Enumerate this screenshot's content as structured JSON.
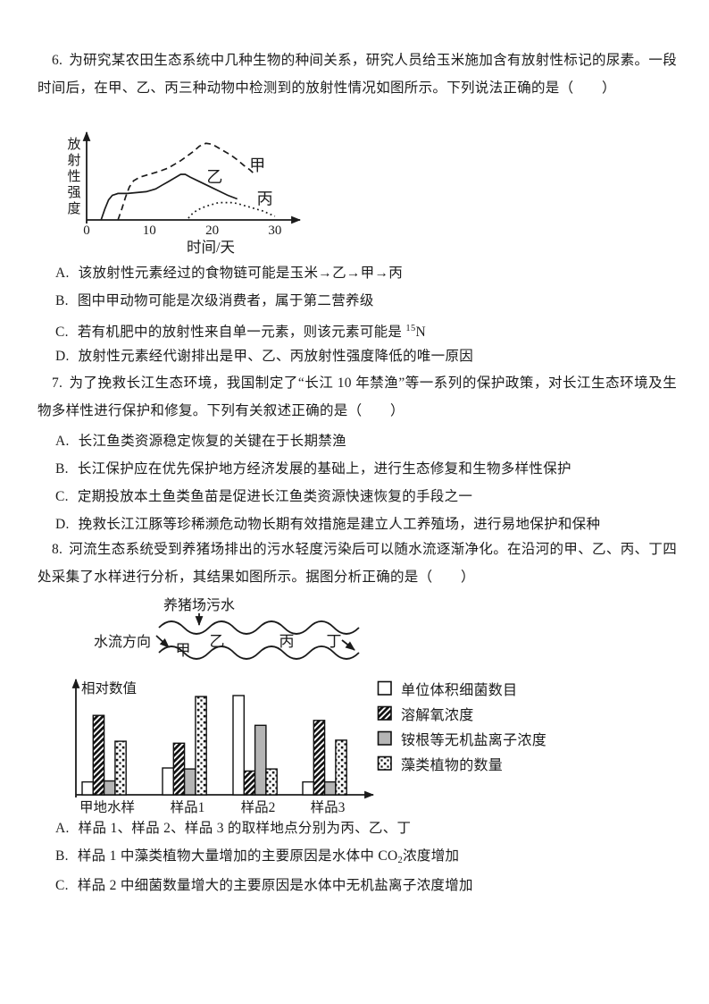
{
  "questions": {
    "q6": {
      "number": "6.",
      "stem": "为研究某农田生态系统中几种生物的种间关系，研究人员给玉米施加含有放射性标记的尿素。一段时间后，在甲、乙、丙三种动物中检测到的放射性情况如图所示。下列说法正确的是（　　）",
      "options": {
        "a": {
          "label": "A.",
          "text": "该放射性元素经过的食物链可能是玉米→乙→甲→丙"
        },
        "b": {
          "label": "B.",
          "text": "图中甲动物可能是次级消费者，属于第二营养级"
        },
        "c": {
          "label": "C.",
          "pre": "若有机肥中的放射性来自单一元素，则该元素可能是 ",
          "sup": "15",
          "post": "N"
        },
        "d": {
          "label": "D.",
          "text": "放射性元素经代谢排出是甲、乙、丙放射性强度降低的唯一原因"
        }
      }
    },
    "q7": {
      "number": "7.",
      "stem": "为了挽救长江生态环境，我国制定了“长江 10 年禁渔”等一系列的保护政策，对长江生态环境及生物多样性进行保护和修复。下列有关叙述正确的是（　　）",
      "options": {
        "a": {
          "label": "A.",
          "text": "长江鱼类资源稳定恢复的关键在于长期禁渔"
        },
        "b": {
          "label": "B.",
          "text": "长江保护应在优先保护地方经济发展的基础上，进行生态修复和生物多样性保护"
        },
        "c": {
          "label": "C.",
          "text": "定期投放本土鱼类鱼苗是促进长江鱼类资源快速恢复的手段之一"
        },
        "d": {
          "label": "D.",
          "text": "挽救长江江豚等珍稀濒危动物长期有效措施是建立人工养殖场，进行易地保护和保种"
        }
      }
    },
    "q8": {
      "number": "8.",
      "stem": "河流生态系统受到养猪场排出的污水轻度污染后可以随水流逐渐净化。在沿河的甲、乙、丙、丁四处采集了水样进行分析，其结果如图所示。据图分析正确的是（　　）",
      "options": {
        "a": {
          "label": "A.",
          "text": "样品 1、样品 2、样品 3 的取样地点分别为丙、乙、丁"
        },
        "b": {
          "label": "B.",
          "pre": "样品 1 中藻类植物大量增加的主要原因是水体中 CO",
          "sub": "2",
          "post": "浓度增加"
        },
        "c": {
          "label": "C.",
          "text": "样品 2 中细菌数量增大的主要原因是水体中无机盐离子浓度增加"
        }
      }
    }
  },
  "river_diagram": {
    "sewage_label": "养猪场污水",
    "flow_label": "水流方向",
    "sites": [
      "甲",
      "乙",
      "丙",
      "丁"
    ]
  },
  "chart_data": [
    {
      "type": "line",
      "xlabel": "时间/天",
      "ylabel": "放射性强度",
      "x_ticks": [
        0,
        10,
        20,
        30
      ],
      "xlim": [
        0,
        33
      ],
      "series": [
        {
          "name": "甲",
          "style": "dashed",
          "label_pos": [
            27.2,
            0.6
          ],
          "points": [
            [
              5,
              0
            ],
            [
              5.6,
              0.12
            ],
            [
              6.2,
              0.25
            ],
            [
              6.8,
              0.36
            ],
            [
              7.5,
              0.43
            ],
            [
              8.5,
              0.47
            ],
            [
              10,
              0.5
            ],
            [
              11.5,
              0.53
            ],
            [
              13,
              0.57
            ],
            [
              14,
              0.61
            ],
            [
              15,
              0.65
            ],
            [
              16,
              0.7
            ],
            [
              17,
              0.75
            ],
            [
              18,
              0.81
            ],
            [
              19,
              0.84
            ],
            [
              20,
              0.83
            ],
            [
              21,
              0.79
            ],
            [
              22,
              0.75
            ],
            [
              23,
              0.71
            ],
            [
              24,
              0.66
            ],
            [
              25,
              0.6
            ],
            [
              26,
              0.55
            ],
            [
              26.8,
              0.5
            ]
          ]
        },
        {
          "name": "乙",
          "style": "solid",
          "label_pos": [
            20.4,
            0.47
          ],
          "points": [
            [
              2.3,
              0
            ],
            [
              2.9,
              0.12
            ],
            [
              3.5,
              0.22
            ],
            [
              4.1,
              0.27
            ],
            [
              5,
              0.29
            ],
            [
              6.5,
              0.29
            ],
            [
              8,
              0.3
            ],
            [
              9.5,
              0.31
            ],
            [
              11,
              0.34
            ],
            [
              12,
              0.38
            ],
            [
              13,
              0.42
            ],
            [
              14,
              0.46
            ],
            [
              15,
              0.5
            ],
            [
              15.7,
              0.5
            ],
            [
              16.5,
              0.47
            ],
            [
              18,
              0.42
            ],
            [
              19.5,
              0.37
            ],
            [
              21,
              0.32
            ],
            [
              22.5,
              0.27
            ],
            [
              24,
              0.23
            ]
          ]
        },
        {
          "name": "丙",
          "style": "dotted",
          "label_pos": [
            28.4,
            0.23
          ],
          "points": [
            [
              16.2,
              0.02
            ],
            [
              17,
              0.08
            ],
            [
              18,
              0.12
            ],
            [
              19,
              0.15
            ],
            [
              20,
              0.17
            ],
            [
              21,
              0.19
            ],
            [
              22,
              0.19
            ],
            [
              23,
              0.19
            ],
            [
              24,
              0.18
            ],
            [
              25,
              0.16
            ],
            [
              26,
              0.14
            ],
            [
              27,
              0.12
            ],
            [
              28,
              0.1
            ],
            [
              29,
              0.07
            ],
            [
              30,
              0.04
            ]
          ]
        }
      ]
    },
    {
      "type": "bar",
      "ylabel": "相对数值",
      "categories": [
        "甲地水样",
        "样品1",
        "样品2",
        "样品3"
      ],
      "series": [
        {
          "name": "单位体积细菌数目",
          "pattern": "plain",
          "values": [
            0.13,
            0.27,
            1.0,
            0.13
          ]
        },
        {
          "name": "溶解氧浓度",
          "pattern": "hatch",
          "values": [
            0.8,
            0.52,
            0.24,
            0.75
          ]
        },
        {
          "name": "铵根等无机盐离子浓度",
          "pattern": "gray",
          "values": [
            0.14,
            0.26,
            0.7,
            0.13
          ]
        },
        {
          "name": "藻类植物的数量",
          "pattern": "dots",
          "values": [
            0.54,
            0.99,
            0.26,
            0.55
          ]
        }
      ]
    }
  ]
}
